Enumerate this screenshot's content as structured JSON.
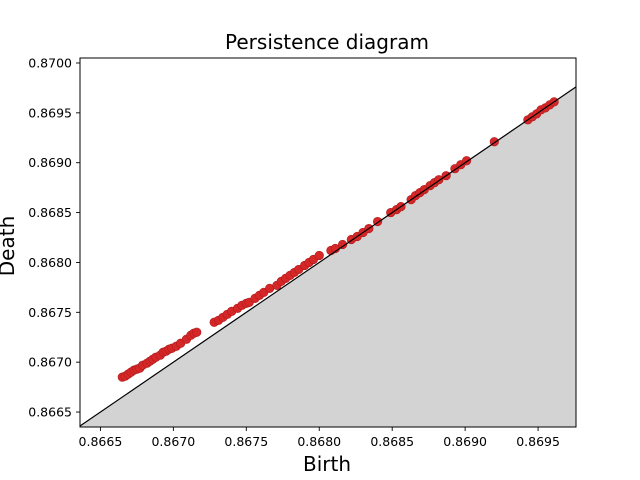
{
  "chart_data": {
    "type": "scatter",
    "title": "Persistence diagram",
    "xlabel": "Birth",
    "ylabel": "Death",
    "xlim": [
      0.86636,
      0.86976
    ],
    "ylim": [
      0.86635,
      0.87005
    ],
    "xticks": [
      "0.8665",
      "0.8670",
      "0.8675",
      "0.8680",
      "0.8685",
      "0.8690",
      "0.8695"
    ],
    "xtick_values": [
      0.8665,
      0.867,
      0.8675,
      0.868,
      0.8685,
      0.869,
      0.8695
    ],
    "yticks": [
      "0.8665",
      "0.8670",
      "0.8675",
      "0.8680",
      "0.8685",
      "0.8690",
      "0.8695",
      "0.8700"
    ],
    "ytick_values": [
      0.8665,
      0.867,
      0.8675,
      0.868,
      0.8685,
      0.869,
      0.8695,
      0.87
    ],
    "diagonal": true,
    "shaded_below_diagonal": true,
    "colors": {
      "points": "#d62728",
      "point_edge": "#b01a1a",
      "shade": "#d3d3d3",
      "diagonal": "#000000"
    },
    "points": [
      [
        0.86665,
        0.86685
      ],
      [
        0.86667,
        0.86686
      ],
      [
        0.86669,
        0.86688
      ],
      [
        0.86671,
        0.8669
      ],
      [
        0.86673,
        0.86692
      ],
      [
        0.86675,
        0.86693
      ],
      [
        0.86677,
        0.86694
      ],
      [
        0.86679,
        0.86697
      ],
      [
        0.86682,
        0.86699
      ],
      [
        0.86684,
        0.86701
      ],
      [
        0.86686,
        0.86703
      ],
      [
        0.86688,
        0.86705
      ],
      [
        0.86691,
        0.86707
      ],
      [
        0.86693,
        0.8671
      ],
      [
        0.86695,
        0.86711
      ],
      [
        0.86697,
        0.86713
      ],
      [
        0.86699,
        0.86714
      ],
      [
        0.86702,
        0.86716
      ],
      [
        0.86705,
        0.86719
      ],
      [
        0.86709,
        0.86723
      ],
      [
        0.86712,
        0.86727
      ],
      [
        0.86714,
        0.86729
      ],
      [
        0.86716,
        0.8673
      ],
      [
        0.86728,
        0.8674
      ],
      [
        0.86731,
        0.86742
      ],
      [
        0.86734,
        0.86745
      ],
      [
        0.86737,
        0.86748
      ],
      [
        0.8674,
        0.86751
      ],
      [
        0.86744,
        0.86754
      ],
      [
        0.86747,
        0.86757
      ],
      [
        0.8675,
        0.86759
      ],
      [
        0.86752,
        0.8676
      ],
      [
        0.86756,
        0.86764
      ],
      [
        0.86759,
        0.86767
      ],
      [
        0.86762,
        0.8677
      ],
      [
        0.86766,
        0.86774
      ],
      [
        0.86771,
        0.86777
      ],
      [
        0.86774,
        0.86781
      ],
      [
        0.86777,
        0.86784
      ],
      [
        0.8678,
        0.86787
      ],
      [
        0.86783,
        0.8679
      ],
      [
        0.86786,
        0.86793
      ],
      [
        0.8679,
        0.86797
      ],
      [
        0.86793,
        0.868
      ],
      [
        0.86796,
        0.86803
      ],
      [
        0.868,
        0.86807
      ],
      [
        0.86808,
        0.86812
      ],
      [
        0.86811,
        0.86814
      ],
      [
        0.86816,
        0.86818
      ],
      [
        0.86822,
        0.86823
      ],
      [
        0.86826,
        0.86826
      ],
      [
        0.8683,
        0.8683
      ],
      [
        0.86834,
        0.86834
      ],
      [
        0.8684,
        0.86841
      ],
      [
        0.86849,
        0.8685
      ],
      [
        0.86853,
        0.86853
      ],
      [
        0.86856,
        0.86856
      ],
      [
        0.86863,
        0.86863
      ],
      [
        0.86866,
        0.86867
      ],
      [
        0.86869,
        0.8687
      ],
      [
        0.86872,
        0.86873
      ],
      [
        0.86876,
        0.86877
      ],
      [
        0.86879,
        0.8688
      ],
      [
        0.86882,
        0.86883
      ],
      [
        0.86887,
        0.86887
      ],
      [
        0.86893,
        0.86894
      ],
      [
        0.86897,
        0.86898
      ],
      [
        0.86901,
        0.86902
      ],
      [
        0.8692,
        0.86921
      ],
      [
        0.86943,
        0.86943
      ],
      [
        0.86946,
        0.86946
      ],
      [
        0.86949,
        0.86949
      ],
      [
        0.86952,
        0.86953
      ],
      [
        0.86955,
        0.86955
      ],
      [
        0.86958,
        0.86958
      ],
      [
        0.86961,
        0.86961
      ]
    ]
  }
}
